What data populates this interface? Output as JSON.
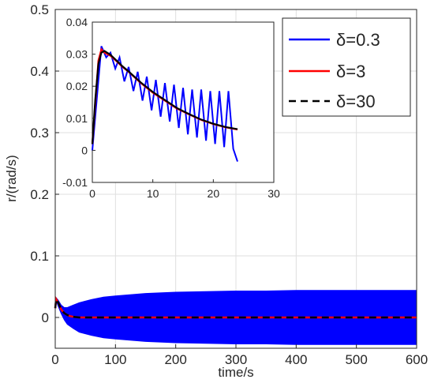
{
  "chart_data": {
    "type": "line",
    "main": {
      "xlabel": "time/s",
      "ylabel": "r/(rad/s)",
      "xlim": [
        0,
        600
      ],
      "ylim": [
        -0.05,
        0.5
      ],
      "xticks": [
        0,
        100,
        200,
        300,
        400,
        500,
        600
      ],
      "yticks": [
        0,
        0.1,
        0.2,
        0.3,
        0.4,
        0.5
      ],
      "grid": true,
      "series": [
        {
          "name": "δ=0.3",
          "style": "solid",
          "color": "#0000ff",
          "note_band": "oscillating envelope",
          "upper": {
            "x": [
              0,
              1.5,
              5,
              10,
              15,
              20,
              30,
              40,
              60,
              80,
              100,
              150,
              200,
              250,
              300,
              350,
              400,
              450,
              500,
              550,
              600
            ],
            "y": [
              0.02,
              0.032,
              0.028,
              0.02,
              0.016,
              0.016,
              0.02,
              0.024,
              0.029,
              0.033,
              0.035,
              0.039,
              0.041,
              0.042,
              0.043,
              0.043,
              0.044,
              0.044,
              0.044,
              0.044,
              0.044
            ]
          },
          "lower": {
            "x": [
              0,
              1.5,
              5,
              10,
              15,
              20,
              30,
              40,
              60,
              80,
              100,
              150,
              200,
              250,
              300,
              350,
              400,
              450,
              500,
              550,
              600
            ],
            "y": [
              0.02,
              0.028,
              0.018,
              0.006,
              -0.004,
              -0.011,
              -0.018,
              -0.024,
              -0.029,
              -0.033,
              -0.035,
              -0.039,
              -0.041,
              -0.042,
              -0.043,
              -0.043,
              -0.044,
              -0.044,
              -0.044,
              -0.044,
              -0.044
            ]
          }
        },
        {
          "name": "δ=3",
          "style": "solid",
          "color": "#ff0000",
          "x": [
            0,
            1.5,
            5,
            10,
            15,
            20,
            25,
            30,
            40,
            50,
            600
          ],
          "y": [
            0.015,
            0.03,
            0.024,
            0.013,
            0.007,
            0.004,
            0.002,
            0.001,
            0.0,
            0.0,
            0.0
          ]
        },
        {
          "name": "δ=30",
          "style": "dashed",
          "color": "#000000",
          "x": [
            0,
            1.5,
            5,
            10,
            15,
            20,
            25,
            30,
            40,
            50,
            600
          ],
          "y": [
            0.015,
            0.03,
            0.024,
            0.013,
            0.007,
            0.004,
            0.002,
            0.001,
            0.0,
            0.0,
            0.0
          ]
        }
      ]
    },
    "inset": {
      "xlim": [
        0,
        30
      ],
      "ylim": [
        -0.01,
        0.04
      ],
      "xticks": [
        0,
        10,
        20,
        30
      ],
      "yticks": [
        -0.01,
        0,
        0.01,
        0.02,
        0.03,
        0.04
      ],
      "tick_labels_x": [
        "0",
        "10",
        "20",
        "30"
      ],
      "tick_labels_y": [
        "-0.01",
        "0",
        "0.01",
        "0.02",
        "0.03",
        "0.04"
      ],
      "grid": false,
      "series": [
        {
          "name": "δ=0.3",
          "color": "#0000ff",
          "style": "solid",
          "x": [
            0,
            1.5,
            2.3,
            3.0,
            3.8,
            4.5,
            5.3,
            6.0,
            6.8,
            7.5,
            8.3,
            9.0,
            9.8,
            10.5,
            11.3,
            12.0,
            12.8,
            13.5,
            14.3,
            15.0,
            15.8,
            16.5,
            17.3,
            18.0,
            18.8,
            19.5,
            20.3,
            21.0,
            21.8,
            22.5,
            23.3,
            24.0
          ],
          "y": [
            0.0,
            0.0325,
            0.029,
            0.0305,
            0.0255,
            0.029,
            0.0215,
            0.026,
            0.0185,
            0.0245,
            0.0155,
            0.023,
            0.0125,
            0.022,
            0.0105,
            0.021,
            0.009,
            0.0205,
            0.007,
            0.0195,
            0.005,
            0.019,
            0.004,
            0.019,
            0.003,
            0.0185,
            0.002,
            0.0185,
            0.001,
            0.0185,
            0.0005,
            -0.0035
          ]
        },
        {
          "name": "δ=3",
          "color": "#ff0000",
          "style": "solid",
          "x": [
            0,
            0.5,
            1.0,
            1.5,
            2.0,
            3.0,
            4.0,
            5.0,
            6.0,
            8.0,
            10.0,
            12.0,
            14.0,
            16.0,
            18.0,
            20.0,
            22.0,
            24.0
          ],
          "y": [
            0.002,
            0.015,
            0.028,
            0.0315,
            0.0305,
            0.0295,
            0.0278,
            0.026,
            0.0245,
            0.021,
            0.018,
            0.0155,
            0.013,
            0.0112,
            0.0095,
            0.0082,
            0.0072,
            0.0065
          ]
        },
        {
          "name": "δ=30",
          "color": "#000000",
          "style": "solid",
          "x": [
            0,
            0.5,
            1.0,
            1.5,
            2.0,
            3.0,
            4.0,
            5.0,
            6.0,
            8.0,
            10.0,
            12.0,
            14.0,
            16.0,
            18.0,
            20.0,
            22.0,
            24.0
          ],
          "y": [
            0.002,
            0.016,
            0.027,
            0.0305,
            0.031,
            0.0298,
            0.028,
            0.0262,
            0.0246,
            0.0212,
            0.0182,
            0.0157,
            0.0132,
            0.0113,
            0.0096,
            0.0083,
            0.0073,
            0.0066
          ]
        }
      ]
    },
    "legend": {
      "placement": "top-right",
      "entries": [
        "δ=0.3",
        "δ=3",
        "δ=30"
      ]
    }
  }
}
